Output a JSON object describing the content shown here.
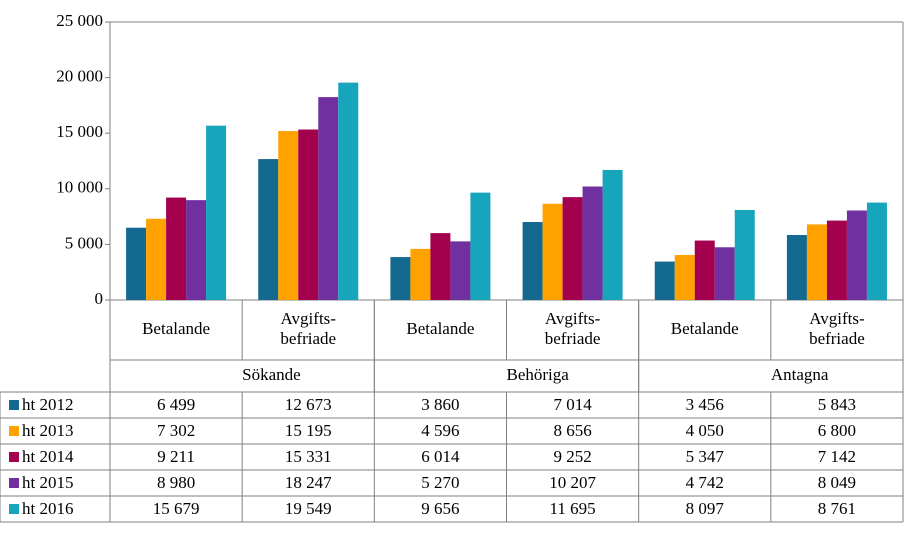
{
  "chart_data": {
    "type": "bar",
    "groups": [
      "Sökande",
      "Behöriga",
      "Antagna"
    ],
    "categories": [
      "Betalande",
      "Avgifts-\nbefriade",
      "Betalande",
      "Avgifts-\nbefriade",
      "Betalande",
      "Avgifts-\nbefriade"
    ],
    "series": [
      {
        "name": "ht 2012",
        "color": "#13698f",
        "values": [
          6499,
          12673,
          3860,
          7014,
          3456,
          5843
        ],
        "value_labels": [
          "6 499",
          "12 673",
          "3 860",
          "7 014",
          "3 456",
          "5 843"
        ]
      },
      {
        "name": "ht 2013",
        "color": "#ffa200",
        "values": [
          7302,
          15195,
          4596,
          8656,
          4050,
          6800
        ],
        "value_labels": [
          "7 302",
          "15 195",
          "4 596",
          "8 656",
          "4 050",
          "6 800"
        ]
      },
      {
        "name": "ht 2014",
        "color": "#a3004d",
        "values": [
          9211,
          15331,
          6014,
          9252,
          5347,
          7142
        ],
        "value_labels": [
          "9 211",
          "15 331",
          "6 014",
          "9 252",
          "5 347",
          "7 142"
        ]
      },
      {
        "name": "ht 2015",
        "color": "#7030a0",
        "values": [
          8980,
          18247,
          5270,
          10207,
          4742,
          8049
        ],
        "value_labels": [
          "8 980",
          "18 247",
          "5 270",
          "10 207",
          "4 742",
          "8 049"
        ]
      },
      {
        "name": "ht 2016",
        "color": "#17a5bb",
        "values": [
          15679,
          19549,
          9656,
          11695,
          8097,
          8761
        ],
        "value_labels": [
          "15 679",
          "19 549",
          "9 656",
          "11 695",
          "8 097",
          "8 761"
        ]
      }
    ],
    "ylim": [
      0,
      25000
    ],
    "yticks": [
      0,
      {
        "value": 5000,
        "label": "5 000"
      },
      {
        "value": 10000,
        "label": "10 000"
      },
      {
        "value": 15000,
        "label": "15 000"
      },
      {
        "value": 20000,
        "label": "20 000"
      },
      {
        "value": 25000,
        "label": "25 000"
      }
    ],
    "grid": false
  }
}
